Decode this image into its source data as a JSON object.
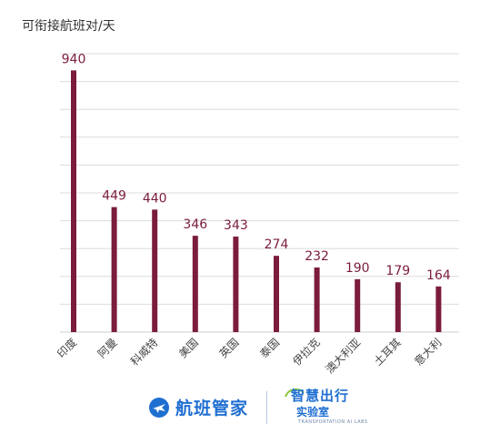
{
  "chart_data": {
    "type": "bar",
    "ylabel": "可衔接航班对/天",
    "categories": [
      "印度",
      "阿曼",
      "科威特",
      "美国",
      "英国",
      "泰国",
      "伊拉克",
      "澳大利亚",
      "土耳其",
      "意大利"
    ],
    "values": [
      940,
      449,
      440,
      346,
      343,
      274,
      232,
      190,
      179,
      164
    ],
    "ylim": [
      0,
      1000
    ],
    "grid": true,
    "bar_color": "#7b1c3c",
    "grid_color": "#dcdcdc"
  },
  "footer": {
    "brand_name": "航班管家",
    "lab_title": "智慧出行",
    "lab_subtitle": "实验室",
    "lab_english": "TRANSPORTATION AI LABS",
    "brand_color": "#1f6fd1"
  }
}
